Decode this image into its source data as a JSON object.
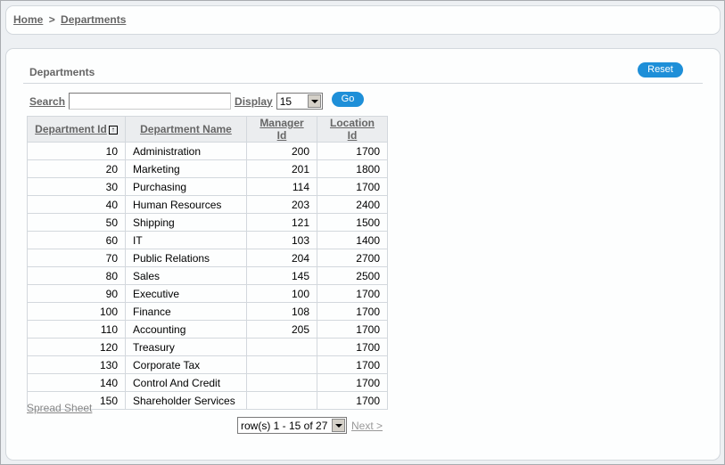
{
  "breadcrumb": {
    "home": "Home",
    "sep": ">",
    "current": "Departments"
  },
  "region": {
    "title": "Departments",
    "reset_label": "Reset"
  },
  "search": {
    "label": "Search",
    "value": "",
    "display_label": "Display",
    "display_value": "15",
    "go_label": "Go"
  },
  "table": {
    "columns": [
      "Department Id",
      "Department Name",
      "Manager Id",
      "Location Id"
    ],
    "sort_icon": "sort-ascending-icon",
    "rows": [
      [
        "10",
        "Administration",
        "200",
        "1700"
      ],
      [
        "20",
        "Marketing",
        "201",
        "1800"
      ],
      [
        "30",
        "Purchasing",
        "114",
        "1700"
      ],
      [
        "40",
        "Human Resources",
        "203",
        "2400"
      ],
      [
        "50",
        "Shipping",
        "121",
        "1500"
      ],
      [
        "60",
        "IT",
        "103",
        "1400"
      ],
      [
        "70",
        "Public Relations",
        "204",
        "2700"
      ],
      [
        "80",
        "Sales",
        "145",
        "2500"
      ],
      [
        "90",
        "Executive",
        "100",
        "1700"
      ],
      [
        "100",
        "Finance",
        "108",
        "1700"
      ],
      [
        "110",
        "Accounting",
        "205",
        "1700"
      ],
      [
        "120",
        "Treasury",
        "",
        "1700"
      ],
      [
        "130",
        "Corporate Tax",
        "",
        "1700"
      ],
      [
        "140",
        "Control And Credit",
        "",
        "1700"
      ],
      [
        "150",
        "Shareholder Services",
        "",
        "1700"
      ]
    ]
  },
  "footer": {
    "spreadsheet": "Spread Sheet",
    "pagination": "row(s) 1 - 15 of 27",
    "next": "Next >"
  },
  "colors": {
    "button": "#1e8fd8",
    "background": "#edf0f3",
    "header_bg": "#ebedef"
  }
}
